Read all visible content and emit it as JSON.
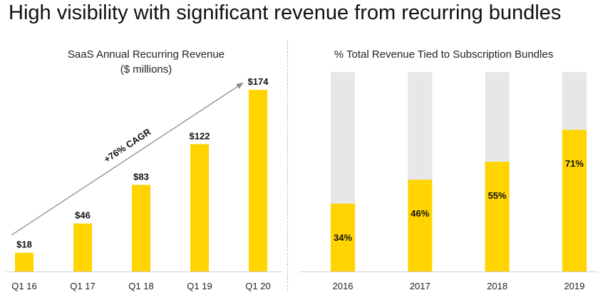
{
  "page": {
    "title": "High visibility with significant revenue from recurring bundles"
  },
  "chart_data": [
    {
      "type": "bar",
      "title": "SaaS Annual Recurring Revenue",
      "subtitle": "($ millions)",
      "categories": [
        "Q1 16",
        "Q1 17",
        "Q1 18",
        "Q1 19",
        "Q1 20"
      ],
      "values": [
        18,
        46,
        83,
        122,
        174
      ],
      "value_labels": [
        "$18",
        "$46",
        "$83",
        "$122",
        "$174"
      ],
      "ylim": [
        0,
        180
      ],
      "annotation": "+76% CAGR",
      "bar_color": "#FFD400",
      "grid": false
    },
    {
      "type": "bar",
      "title": "%  Total Revenue Tied to Subscription Bundles",
      "categories": [
        "2016",
        "2017",
        "2018",
        "2019"
      ],
      "values": [
        34,
        46,
        55,
        71
      ],
      "value_labels": [
        "34%",
        "46%",
        "55%",
        "71%"
      ],
      "ylim": [
        0,
        100
      ],
      "bar_color": "#FFD400",
      "background_color": "#E7E7E7",
      "grid": false
    }
  ]
}
